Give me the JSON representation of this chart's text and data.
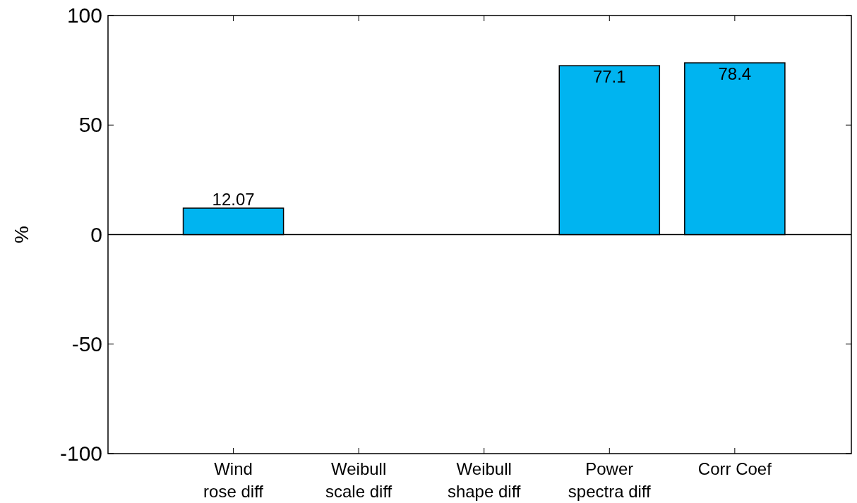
{
  "chart_data": {
    "type": "bar",
    "ylabel": "%",
    "categories": [
      "Wind\nrose diff",
      "Weibull\nscale diff",
      "Weibull\nshape diff",
      "Power\nspectra diff",
      "Corr Coef"
    ],
    "values": [
      12.07,
      null,
      null,
      77.1,
      78.4
    ],
    "color": "#00b4f0",
    "ylim": [
      -100,
      100
    ],
    "yticks": [
      -100,
      -50,
      0,
      50,
      100
    ],
    "grid": false,
    "data_labels": true,
    "ref_lines": [
      {
        "axis": "y",
        "value": 0
      }
    ]
  }
}
